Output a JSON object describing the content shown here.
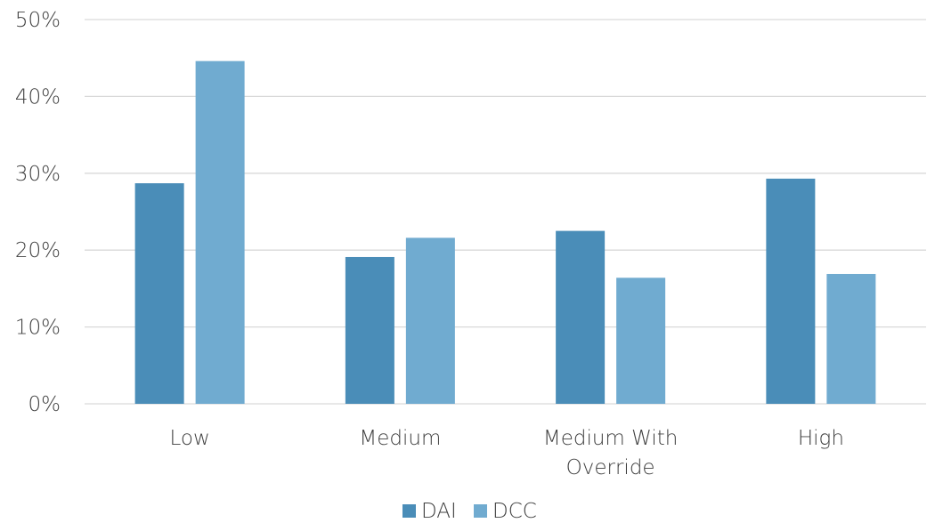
{
  "chart_data": {
    "type": "bar",
    "categories": [
      "Low",
      "Medium",
      "Medium With Override",
      "High"
    ],
    "category_lines": [
      [
        "Low"
      ],
      [
        "Medium"
      ],
      [
        "Medium With",
        "Override"
      ],
      [
        "High"
      ]
    ],
    "series": [
      {
        "name": "DAI",
        "values": [
          28.7,
          19.1,
          22.5,
          29.3
        ],
        "color": "#4a8db8"
      },
      {
        "name": "DCC",
        "values": [
          44.6,
          21.6,
          16.4,
          16.9
        ],
        "color": "#70abd0"
      }
    ],
    "y_ticks": [
      0,
      10,
      20,
      30,
      40,
      50
    ],
    "y_tick_labels": [
      "0%",
      "10%",
      "20%",
      "30%",
      "40%",
      "50%"
    ],
    "ylim": [
      0,
      50
    ],
    "grid": true,
    "legend_position": "bottom",
    "title": "",
    "xlabel": "",
    "ylabel": ""
  },
  "colors": {
    "gridline": "#d9d9d9",
    "text": "#404040"
  }
}
